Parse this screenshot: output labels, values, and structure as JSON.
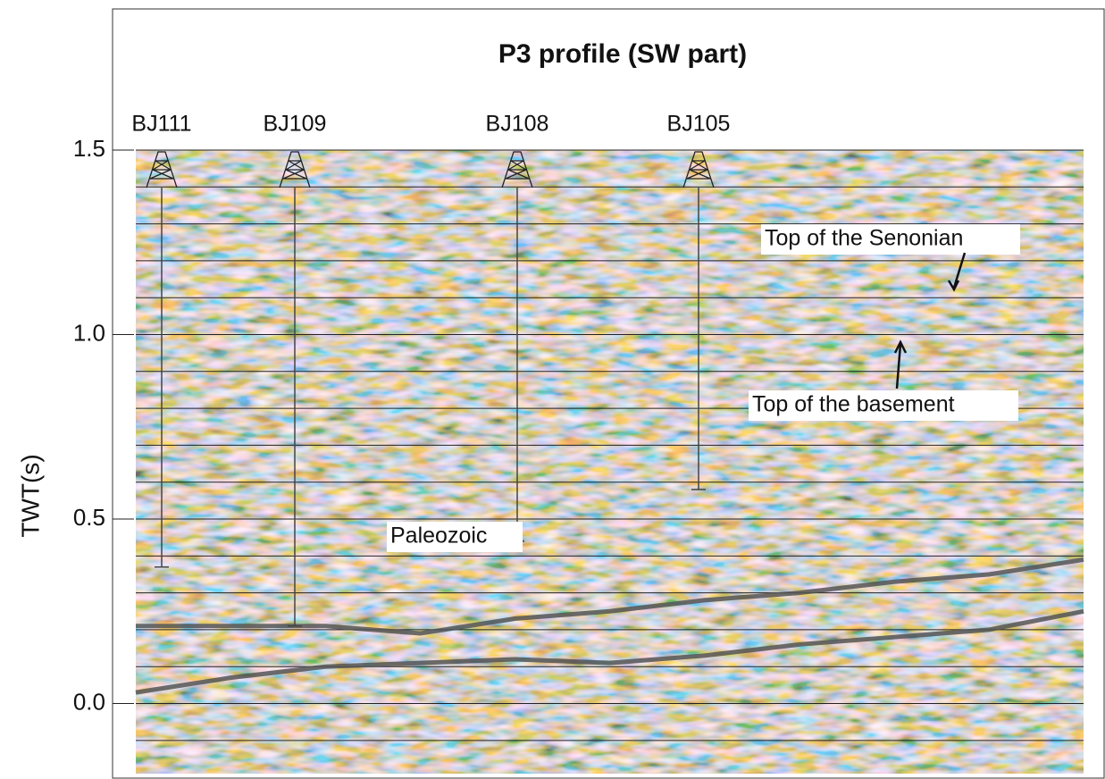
{
  "chart_data": {
    "type": "seismic",
    "title": "P3 profile (SW part)",
    "y_label": "TWT(s)",
    "ylim": [
      -0.19,
      1.5
    ],
    "yticks": [
      {
        "value": 0,
        "label": "0.0"
      },
      0.5,
      {
        "value": 1,
        "label": "1.0"
      },
      1.5
    ],
    "minor_yticks": [
      -0.1,
      0.1,
      0.2,
      0.3,
      0.4,
      0.6,
      0.7,
      0.8,
      0.9,
      1.1,
      1.2,
      1.3,
      1.4
    ],
    "categories": [
      null,
      null,
      null,
      null,
      null,
      null,
      null,
      null,
      null,
      null,
      null
    ],
    "series": [
      {
        "name": "Top of the Senonian",
        "color": "#555555",
        "values": [
          0.03,
          0.07,
          0.1,
          0.11,
          0.12,
          0.11,
          0.13,
          0.16,
          0.18,
          0.2,
          0.25
        ]
      },
      {
        "name": "Top of the basement",
        "color": "#555555",
        "values": [
          0.21,
          0.21,
          0.21,
          0.19,
          0.23,
          0.25,
          0.28,
          0.3,
          0.33,
          0.35,
          0.39
        ]
      }
    ],
    "wells": [
      {
        "name": "BJ111",
        "bottom": 0.37
      },
      {
        "name": "BJ109",
        "bottom": 0.21
      },
      {
        "name": "BJ108",
        "bottom": 0.44
      },
      {
        "name": "BJ105",
        "bottom": 0.58
      }
    ],
    "annotations": [
      "Paleozoic"
    ]
  }
}
